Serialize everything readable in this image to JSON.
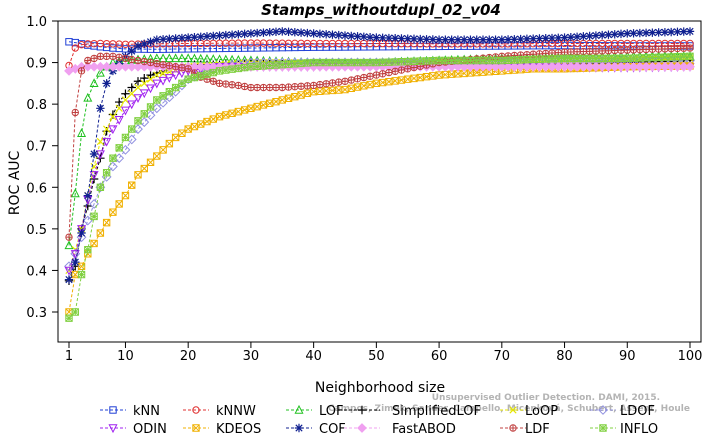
{
  "chart_data": {
    "type": "line",
    "title": "Stamps_withoutdupl_02_v04",
    "xlabel": "Neighborhood size",
    "ylabel": "ROC AUC",
    "xlim": [
      1,
      100
    ],
    "ylim": [
      0.28,
      1.0
    ],
    "xticks": [
      "1",
      "10",
      "20",
      "30",
      "40",
      "50",
      "60",
      "70",
      "80",
      "90",
      "100"
    ],
    "yticks": [
      "0.3",
      "0.4",
      "0.5",
      "0.6",
      "0.7",
      "0.8",
      "0.9",
      "1.0"
    ],
    "grid": false,
    "legend_position": "bottom",
    "watermark": [
      "Campos, Zimek, Sander, Campello, Micenková, Schubert, Assent, Houle",
      "Unsupervised Outlier Detection. DAMI, 2015."
    ],
    "series": [
      {
        "name": "kNN",
        "color": "#1f3fd6",
        "marker": "square",
        "points": [
          [
            1,
            0.95
          ],
          [
            2,
            0.948
          ],
          [
            3,
            0.945
          ],
          [
            4,
            0.942
          ],
          [
            5,
            0.94
          ],
          [
            6,
            0.938
          ],
          [
            8,
            0.935
          ],
          [
            10,
            0.933
          ],
          [
            15,
            0.932
          ],
          [
            20,
            0.933
          ],
          [
            30,
            0.935
          ],
          [
            40,
            0.937
          ],
          [
            50,
            0.938
          ],
          [
            60,
            0.939
          ],
          [
            70,
            0.94
          ],
          [
            80,
            0.941
          ],
          [
            90,
            0.94
          ],
          [
            100,
            0.94
          ]
        ]
      },
      {
        "name": "kNNW",
        "color": "#e03030",
        "marker": "circle",
        "points": [
          [
            1,
            0.893
          ],
          [
            2,
            0.935
          ],
          [
            3,
            0.943
          ],
          [
            4,
            0.945
          ],
          [
            6,
            0.946
          ],
          [
            8,
            0.945
          ],
          [
            10,
            0.944
          ],
          [
            15,
            0.945
          ],
          [
            20,
            0.946
          ],
          [
            30,
            0.947
          ],
          [
            40,
            0.946
          ],
          [
            50,
            0.946
          ],
          [
            60,
            0.945
          ],
          [
            70,
            0.945
          ],
          [
            80,
            0.946
          ],
          [
            90,
            0.946
          ],
          [
            100,
            0.946
          ]
        ]
      },
      {
        "name": "LOF",
        "color": "#20c020",
        "marker": "triangle",
        "points": [
          [
            1,
            0.46
          ],
          [
            2,
            0.585
          ],
          [
            3,
            0.73
          ],
          [
            4,
            0.815
          ],
          [
            5,
            0.85
          ],
          [
            6,
            0.875
          ],
          [
            7,
            0.89
          ],
          [
            8,
            0.9
          ],
          [
            10,
            0.905
          ],
          [
            15,
            0.91
          ],
          [
            20,
            0.91
          ],
          [
            30,
            0.905
          ],
          [
            40,
            0.9
          ],
          [
            50,
            0.9
          ],
          [
            60,
            0.905
          ],
          [
            70,
            0.91
          ],
          [
            80,
            0.912
          ],
          [
            90,
            0.915
          ],
          [
            100,
            0.915
          ]
        ]
      },
      {
        "name": "SimplifiedLOF",
        "color": "#000000",
        "marker": "plus",
        "points": [
          [
            1,
            0.375
          ],
          [
            2,
            0.41
          ],
          [
            3,
            0.5
          ],
          [
            4,
            0.555
          ],
          [
            5,
            0.62
          ],
          [
            6,
            0.67
          ],
          [
            7,
            0.735
          ],
          [
            8,
            0.775
          ],
          [
            9,
            0.805
          ],
          [
            10,
            0.825
          ],
          [
            12,
            0.855
          ],
          [
            14,
            0.87
          ],
          [
            16,
            0.88
          ],
          [
            18,
            0.89
          ],
          [
            20,
            0.895
          ],
          [
            25,
            0.895
          ],
          [
            30,
            0.897
          ],
          [
            40,
            0.895
          ],
          [
            50,
            0.893
          ],
          [
            60,
            0.893
          ],
          [
            70,
            0.895
          ],
          [
            80,
            0.897
          ],
          [
            90,
            0.9
          ],
          [
            100,
            0.905
          ]
        ]
      },
      {
        "name": "LoOP",
        "color": "#e6e600",
        "marker": "x",
        "points": [
          [
            1,
            0.4
          ],
          [
            2,
            0.45
          ],
          [
            3,
            0.5
          ],
          [
            4,
            0.58
          ],
          [
            5,
            0.65
          ],
          [
            6,
            0.71
          ],
          [
            8,
            0.77
          ],
          [
            10,
            0.81
          ],
          [
            12,
            0.84
          ],
          [
            15,
            0.87
          ],
          [
            20,
            0.89
          ],
          [
            25,
            0.895
          ],
          [
            30,
            0.9
          ],
          [
            40,
            0.9
          ],
          [
            50,
            0.9
          ],
          [
            60,
            0.902
          ],
          [
            70,
            0.905
          ],
          [
            80,
            0.905
          ],
          [
            90,
            0.908
          ],
          [
            100,
            0.91
          ]
        ]
      },
      {
        "name": "LDOF",
        "color": "#9090e0",
        "marker": "diamond",
        "points": [
          [
            1,
            0.41
          ],
          [
            2,
            0.44
          ],
          [
            3,
            0.48
          ],
          [
            4,
            0.52
          ],
          [
            5,
            0.56
          ],
          [
            6,
            0.6
          ],
          [
            8,
            0.65
          ],
          [
            10,
            0.69
          ],
          [
            12,
            0.74
          ],
          [
            15,
            0.79
          ],
          [
            18,
            0.83
          ],
          [
            20,
            0.86
          ],
          [
            25,
            0.89
          ],
          [
            30,
            0.9
          ],
          [
            40,
            0.9
          ],
          [
            50,
            0.9
          ],
          [
            60,
            0.9
          ],
          [
            70,
            0.902
          ],
          [
            80,
            0.905
          ],
          [
            90,
            0.905
          ],
          [
            100,
            0.905
          ]
        ]
      },
      {
        "name": "ODIN",
        "color": "#a020f0",
        "marker": "triangle-down",
        "points": [
          [
            1,
            0.4
          ],
          [
            2,
            0.44
          ],
          [
            3,
            0.5
          ],
          [
            4,
            0.57
          ],
          [
            5,
            0.63
          ],
          [
            6,
            0.68
          ],
          [
            8,
            0.74
          ],
          [
            10,
            0.785
          ],
          [
            12,
            0.815
          ],
          [
            15,
            0.85
          ],
          [
            18,
            0.87
          ],
          [
            20,
            0.88
          ],
          [
            25,
            0.89
          ],
          [
            30,
            0.89
          ],
          [
            40,
            0.89
          ],
          [
            50,
            0.892
          ],
          [
            60,
            0.89
          ],
          [
            70,
            0.89
          ],
          [
            80,
            0.888
          ],
          [
            90,
            0.888
          ],
          [
            100,
            0.89
          ]
        ]
      },
      {
        "name": "KDEOS",
        "color": "#f0b000",
        "marker": "square-x",
        "points": [
          [
            1,
            0.3
          ],
          [
            2,
            0.39
          ],
          [
            3,
            0.41
          ],
          [
            4,
            0.44
          ],
          [
            6,
            0.49
          ],
          [
            8,
            0.54
          ],
          [
            10,
            0.58
          ],
          [
            12,
            0.63
          ],
          [
            14,
            0.66
          ],
          [
            16,
            0.69
          ],
          [
            18,
            0.72
          ],
          [
            20,
            0.74
          ],
          [
            25,
            0.77
          ],
          [
            30,
            0.79
          ],
          [
            35,
            0.81
          ],
          [
            40,
            0.83
          ],
          [
            45,
            0.835
          ],
          [
            50,
            0.85
          ],
          [
            55,
            0.86
          ],
          [
            60,
            0.87
          ],
          [
            65,
            0.875
          ],
          [
            70,
            0.88
          ],
          [
            75,
            0.885
          ],
          [
            80,
            0.885
          ],
          [
            90,
            0.89
          ],
          [
            100,
            0.892
          ]
        ]
      },
      {
        "name": "COF",
        "color": "#102090",
        "marker": "star",
        "points": [
          [
            1,
            0.378
          ],
          [
            2,
            0.42
          ],
          [
            3,
            0.49
          ],
          [
            4,
            0.58
          ],
          [
            5,
            0.68
          ],
          [
            6,
            0.79
          ],
          [
            7,
            0.85
          ],
          [
            8,
            0.88
          ],
          [
            10,
            0.915
          ],
          [
            12,
            0.94
          ],
          [
            15,
            0.955
          ],
          [
            20,
            0.96
          ],
          [
            25,
            0.965
          ],
          [
            30,
            0.97
          ],
          [
            35,
            0.975
          ],
          [
            40,
            0.97
          ],
          [
            50,
            0.96
          ],
          [
            60,
            0.955
          ],
          [
            70,
            0.955
          ],
          [
            80,
            0.96
          ],
          [
            90,
            0.97
          ],
          [
            100,
            0.975
          ]
        ]
      },
      {
        "name": "FastABOD",
        "color": "#f0a0f0",
        "marker": "diamond-filled",
        "points": [
          [
            1,
            0.88
          ],
          [
            2,
            0.885
          ],
          [
            3,
            0.89
          ],
          [
            5,
            0.89
          ],
          [
            8,
            0.89
          ],
          [
            10,
            0.89
          ],
          [
            15,
            0.89
          ],
          [
            20,
            0.89
          ],
          [
            30,
            0.89
          ],
          [
            40,
            0.89
          ],
          [
            50,
            0.89
          ],
          [
            60,
            0.89
          ],
          [
            70,
            0.89
          ],
          [
            80,
            0.89
          ],
          [
            90,
            0.89
          ],
          [
            100,
            0.89
          ]
        ]
      },
      {
        "name": "LDF",
        "color": "#c04040",
        "marker": "circle-plus",
        "points": [
          [
            1,
            0.48
          ],
          [
            2,
            0.78
          ],
          [
            3,
            0.88
          ],
          [
            4,
            0.905
          ],
          [
            6,
            0.915
          ],
          [
            8,
            0.915
          ],
          [
            10,
            0.91
          ],
          [
            14,
            0.9
          ],
          [
            18,
            0.89
          ],
          [
            20,
            0.885
          ],
          [
            22,
            0.865
          ],
          [
            25,
            0.85
          ],
          [
            28,
            0.845
          ],
          [
            30,
            0.84
          ],
          [
            35,
            0.84
          ],
          [
            40,
            0.845
          ],
          [
            45,
            0.855
          ],
          [
            50,
            0.87
          ],
          [
            55,
            0.885
          ],
          [
            60,
            0.9
          ],
          [
            70,
            0.915
          ],
          [
            80,
            0.925
          ],
          [
            90,
            0.93
          ],
          [
            100,
            0.935
          ]
        ]
      },
      {
        "name": "INFLO",
        "color": "#80d040",
        "marker": "square-star",
        "points": [
          [
            1,
            0.285
          ],
          [
            2,
            0.3
          ],
          [
            3,
            0.39
          ],
          [
            4,
            0.45
          ],
          [
            5,
            0.53
          ],
          [
            6,
            0.6
          ],
          [
            8,
            0.67
          ],
          [
            10,
            0.72
          ],
          [
            12,
            0.76
          ],
          [
            15,
            0.81
          ],
          [
            18,
            0.84
          ],
          [
            20,
            0.86
          ],
          [
            25,
            0.88
          ],
          [
            30,
            0.89
          ],
          [
            40,
            0.9
          ],
          [
            50,
            0.9
          ],
          [
            60,
            0.905
          ],
          [
            70,
            0.905
          ],
          [
            80,
            0.91
          ],
          [
            90,
            0.91
          ],
          [
            100,
            0.915
          ]
        ]
      }
    ]
  }
}
